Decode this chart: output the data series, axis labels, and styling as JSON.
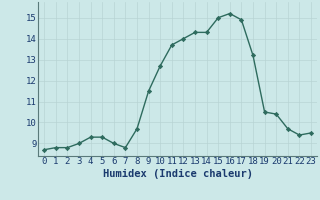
{
  "x": [
    0,
    1,
    2,
    3,
    4,
    5,
    6,
    7,
    8,
    9,
    10,
    11,
    12,
    13,
    14,
    15,
    16,
    17,
    18,
    19,
    20,
    21,
    22,
    23
  ],
  "y": [
    8.7,
    8.8,
    8.8,
    9.0,
    9.3,
    9.3,
    9.0,
    8.8,
    9.7,
    11.5,
    12.7,
    13.7,
    14.0,
    14.3,
    14.3,
    15.0,
    15.2,
    14.9,
    13.2,
    10.5,
    10.4,
    9.7,
    9.4,
    9.5
  ],
  "line_color": "#2e6b5e",
  "marker": "D",
  "marker_size": 2.2,
  "bg_color": "#cce8e8",
  "grid_color": "#b8d4d4",
  "xlabel": "Humidex (Indice chaleur)",
  "xlabel_color": "#1a3a6e",
  "xlabel_fontsize": 7.5,
  "xtick_labels": [
    "0",
    "1",
    "2",
    "3",
    "4",
    "5",
    "6",
    "7",
    "8",
    "9",
    "10",
    "11",
    "12",
    "13",
    "14",
    "15",
    "16",
    "17",
    "18",
    "19",
    "20",
    "21",
    "22",
    "23"
  ],
  "ytick_vals": [
    9,
    10,
    11,
    12,
    13,
    14,
    15
  ],
  "ytick_labels": [
    "9",
    "10",
    "11",
    "12",
    "13",
    "14",
    "15"
  ],
  "ylim": [
    8.4,
    15.75
  ],
  "xlim": [
    -0.5,
    23.5
  ],
  "tick_fontsize": 6.5,
  "line_width": 1.0,
  "spine_color": "#5a7a7a"
}
